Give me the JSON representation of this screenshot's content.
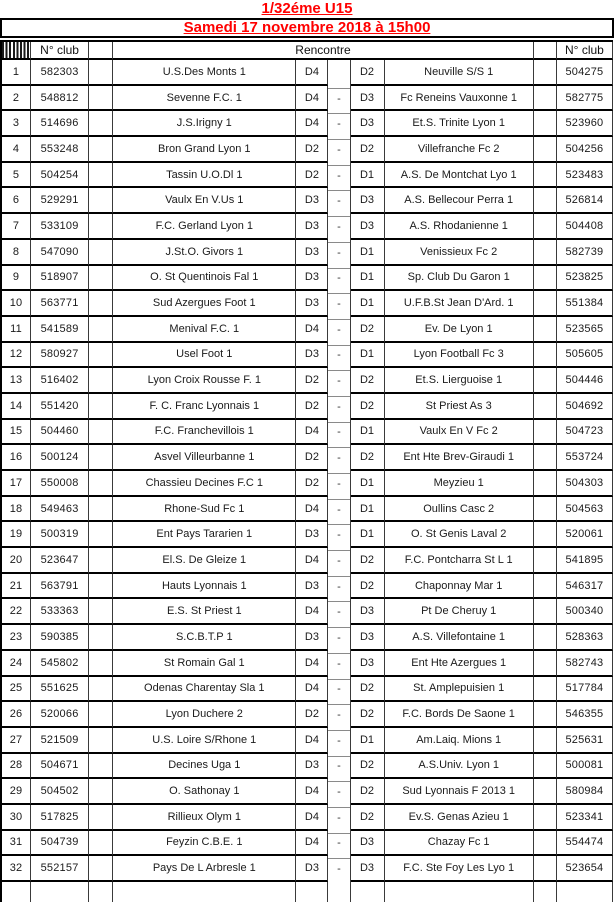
{
  "page": {
    "title": "1/32éme U15",
    "subtitle": "Samedi 17 novembre 2018 à 15h00",
    "accent_color": "#ff0000"
  },
  "table": {
    "headers": {
      "corner_icon": "hatch-pattern",
      "club_left": "N° club",
      "rencontre": "Rencontre",
      "club_right": "N° club"
    },
    "rows": [
      {
        "num": "1",
        "club1": "582303",
        "team1": "U.S.Des Monts 1",
        "div1": "D4",
        "sep": "",
        "div2": "D2",
        "team2": "Neuville S/S 1",
        "club2": "504275"
      },
      {
        "num": "2",
        "club1": "548812",
        "team1": "Sevenne F.C. 1",
        "div1": "D4",
        "sep": "-",
        "div2": "D3",
        "team2": "Fc Reneins Vauxonne 1",
        "club2": "582775"
      },
      {
        "num": "3",
        "club1": "514696",
        "team1": "J.S.Irigny 1",
        "div1": "D4",
        "sep": "-",
        "div2": "D3",
        "team2": "Et.S. Trinite Lyon 1",
        "club2": "523960"
      },
      {
        "num": "4",
        "club1": "553248",
        "team1": "Bron Grand Lyon 1",
        "div1": "D2",
        "sep": "-",
        "div2": "D2",
        "team2": "Villefranche Fc 2",
        "club2": "504256"
      },
      {
        "num": "5",
        "club1": "504254",
        "team1": "Tassin U.O.Dl 1",
        "div1": "D2",
        "sep": "-",
        "div2": "D1",
        "team2": "A.S. De Montchat Lyo 1",
        "club2": "523483"
      },
      {
        "num": "6",
        "club1": "529291",
        "team1": "Vaulx En V.Us 1",
        "div1": "D3",
        "sep": "-",
        "div2": "D3",
        "team2": "A.S. Bellecour Perra 1",
        "club2": "526814"
      },
      {
        "num": "7",
        "club1": "533109",
        "team1": "F.C. Gerland Lyon 1",
        "div1": "D3",
        "sep": "-",
        "div2": "D3",
        "team2": "A.S. Rhodanienne 1",
        "club2": "504408"
      },
      {
        "num": "8",
        "club1": "547090",
        "team1": "J.St.O. Givors 1",
        "div1": "D3",
        "sep": "-",
        "div2": "D1",
        "team2": "Venissieux Fc 2",
        "club2": "582739"
      },
      {
        "num": "9",
        "club1": "518907",
        "team1": "O. St Quentinois Fal 1",
        "div1": "D3",
        "sep": "-",
        "div2": "D1",
        "team2": "Sp. Club Du Garon 1",
        "club2": "523825"
      },
      {
        "num": "10",
        "club1": "563771",
        "team1": "Sud Azergues Foot 1",
        "div1": "D3",
        "sep": "-",
        "div2": "D1",
        "team2": "U.F.B.St Jean D'Ard. 1",
        "club2": "551384"
      },
      {
        "num": "11",
        "club1": "541589",
        "team1": "Menival F.C. 1",
        "div1": "D4",
        "sep": "-",
        "div2": "D2",
        "team2": "Ev. De Lyon 1",
        "club2": "523565"
      },
      {
        "num": "12",
        "club1": "580927",
        "team1": "Usel Foot 1",
        "div1": "D3",
        "sep": "-",
        "div2": "D1",
        "team2": "Lyon Football Fc 3",
        "club2": "505605"
      },
      {
        "num": "13",
        "club1": "516402",
        "team1": "Lyon Croix Rousse F. 1",
        "div1": "D2",
        "sep": "-",
        "div2": "D2",
        "team2": "Et.S. Lierguoise 1",
        "club2": "504446"
      },
      {
        "num": "14",
        "club1": "551420",
        "team1": "F. C. Franc Lyonnais 1",
        "div1": "D2",
        "sep": "-",
        "div2": "D2",
        "team2": "St Priest As 3",
        "club2": "504692"
      },
      {
        "num": "15",
        "club1": "504460",
        "team1": "F.C. Franchevillois 1",
        "div1": "D4",
        "sep": "-",
        "div2": "D1",
        "team2": "Vaulx En V Fc 2",
        "club2": "504723"
      },
      {
        "num": "16",
        "club1": "500124",
        "team1": "Asvel Villeurbanne 1",
        "div1": "D2",
        "sep": "-",
        "div2": "D2",
        "team2": "Ent Hte Brev-Giraudi 1",
        "club2": "553724"
      },
      {
        "num": "17",
        "club1": "550008",
        "team1": "Chassieu Decines F.C 1",
        "div1": "D2",
        "sep": "-",
        "div2": "D1",
        "team2": "Meyzieu 1",
        "club2": "504303"
      },
      {
        "num": "18",
        "club1": "549463",
        "team1": "Rhone-Sud Fc 1",
        "div1": "D4",
        "sep": "-",
        "div2": "D1",
        "team2": "Oullins Casc 2",
        "club2": "504563"
      },
      {
        "num": "19",
        "club1": "500319",
        "team1": "Ent Pays Tararien 1",
        "div1": "D3",
        "sep": "-",
        "div2": "D1",
        "team2": "O. St Genis Laval 2",
        "club2": "520061"
      },
      {
        "num": "20",
        "club1": "523647",
        "team1": "El.S. De Gleize 1",
        "div1": "D4",
        "sep": "-",
        "div2": "D2",
        "team2": "F.C. Pontcharra St L 1",
        "club2": "541895"
      },
      {
        "num": "21",
        "club1": "563791",
        "team1": "Hauts Lyonnais 1",
        "div1": "D3",
        "sep": "-",
        "div2": "D2",
        "team2": "Chaponnay Mar 1",
        "club2": "546317"
      },
      {
        "num": "22",
        "club1": "533363",
        "team1": "E.S. St Priest 1",
        "div1": "D4",
        "sep": "-",
        "div2": "D3",
        "team2": "Pt De Cheruy 1",
        "club2": "500340"
      },
      {
        "num": "23",
        "club1": "590385",
        "team1": "S.C.B.T.P 1",
        "div1": "D3",
        "sep": "-",
        "div2": "D3",
        "team2": "A.S. Villefontaine 1",
        "club2": "528363"
      },
      {
        "num": "24",
        "club1": "545802",
        "team1": "St Romain Gal 1",
        "div1": "D4",
        "sep": "-",
        "div2": "D3",
        "team2": "Ent Hte Azergues 1",
        "club2": "582743"
      },
      {
        "num": "25",
        "club1": "551625",
        "team1": "Odenas Charentay Sla 1",
        "div1": "D4",
        "sep": "-",
        "div2": "D2",
        "team2": "St. Amplepuisien 1",
        "club2": "517784"
      },
      {
        "num": "26",
        "club1": "520066",
        "team1": "Lyon Duchere 2",
        "div1": "D2",
        "sep": "-",
        "div2": "D2",
        "team2": "F.C. Bords De Saone 1",
        "club2": "546355"
      },
      {
        "num": "27",
        "club1": "521509",
        "team1": "U.S. Loire S/Rhone 1",
        "div1": "D4",
        "sep": "-",
        "div2": "D1",
        "team2": "Am.Laiq. Mions 1",
        "club2": "525631"
      },
      {
        "num": "28",
        "club1": "504671",
        "team1": "Decines Uga 1",
        "div1": "D3",
        "sep": "-",
        "div2": "D2",
        "team2": "A.S.Univ. Lyon 1",
        "club2": "500081"
      },
      {
        "num": "29",
        "club1": "504502",
        "team1": "O. Sathonay 1",
        "div1": "D4",
        "sep": "-",
        "div2": "D2",
        "team2": "Sud Lyonnais F 2013 1",
        "club2": "580984"
      },
      {
        "num": "30",
        "club1": "517825",
        "team1": "Rillieux Olym 1",
        "div1": "D4",
        "sep": "-",
        "div2": "D2",
        "team2": "Ev.S. Genas Azieu 1",
        "club2": "523341"
      },
      {
        "num": "31",
        "club1": "504739",
        "team1": "Feyzin C.B.E. 1",
        "div1": "D4",
        "sep": "-",
        "div2": "D3",
        "team2": "Chazay Fc 1",
        "club2": "554474"
      },
      {
        "num": "32",
        "club1": "552157",
        "team1": "Pays De L Arbresle 1",
        "div1": "D3",
        "sep": "-",
        "div2": "D3",
        "team2": "F.C. Ste Foy Les Lyo 1",
        "club2": "523654"
      }
    ]
  }
}
